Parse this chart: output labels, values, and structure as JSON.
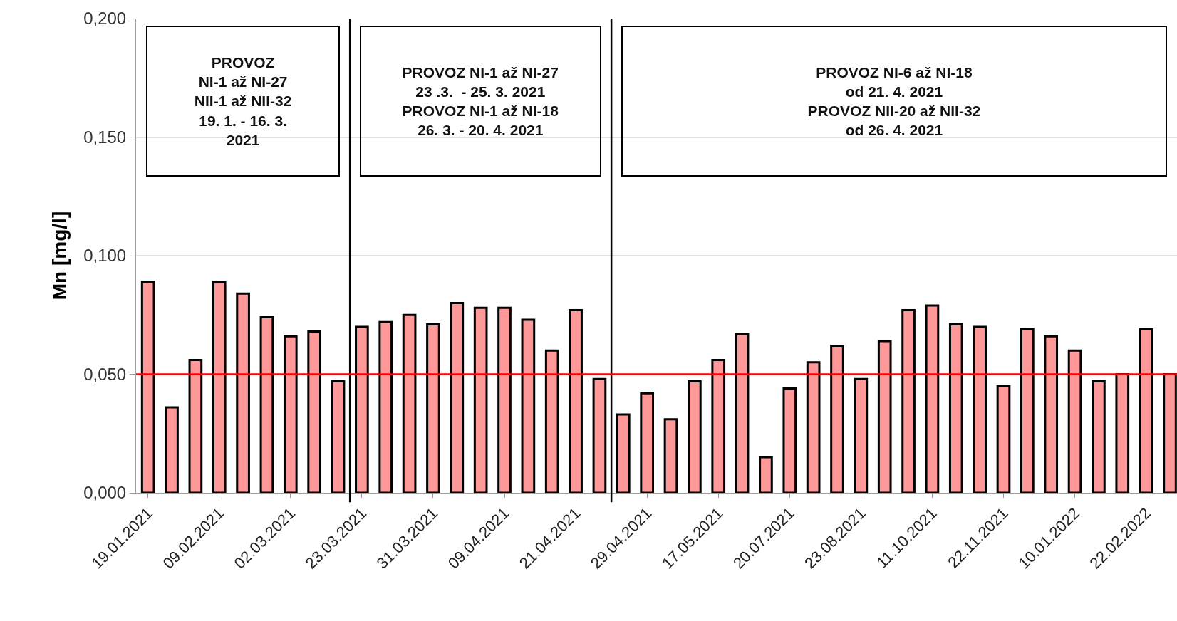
{
  "chart_data": {
    "type": "bar",
    "ylabel": "Mn [mg/l]",
    "categories": [
      "19.01.2021",
      null,
      null,
      "09.02.2021",
      null,
      null,
      "02.03.2021",
      null,
      null,
      "23.03.2021",
      null,
      null,
      "31.03.2021",
      null,
      null,
      "09.04.2021",
      null,
      null,
      "21.04.2021",
      null,
      null,
      "29.04.2021",
      null,
      null,
      "17.05.2021",
      null,
      null,
      "20.07.2021",
      null,
      null,
      "23.08.2021",
      null,
      null,
      "11.10.2021",
      null,
      null,
      "22.11.2021",
      null,
      null,
      "10.01.2022",
      null,
      null,
      "22.02.2022",
      null
    ],
    "values": [
      0.089,
      0.036,
      0.056,
      0.089,
      0.084,
      0.074,
      0.066,
      0.068,
      0.047,
      0.07,
      0.072,
      0.075,
      0.071,
      0.08,
      0.078,
      0.078,
      0.073,
      0.06,
      0.077,
      0.048,
      0.033,
      0.042,
      0.031,
      0.047,
      0.056,
      0.067,
      0.015,
      0.044,
      0.055,
      0.062,
      0.048,
      0.064,
      0.077,
      0.079,
      0.071,
      0.07,
      0.045,
      0.069,
      0.066,
      0.06,
      0.047,
      0.05,
      0.069,
      0.05
    ],
    "color": "#ff9999",
    "ylim": [
      0,
      0.2
    ],
    "yticks": [
      {
        "value": 0,
        "label": "0,000"
      },
      {
        "value": 0.05,
        "label": "0,050"
      },
      {
        "value": 0.1,
        "label": "0,100"
      },
      {
        "value": 0.15,
        "label": "0,150"
      },
      {
        "value": 0.2,
        "label": "0,200"
      }
    ],
    "grid": "y",
    "ref_lines": [
      {
        "axis": "y",
        "value": 0.05,
        "color": "#ff0000"
      }
    ],
    "annotations": [
      "PROVOZ\nNI-1 až NI-27\nNII-1 až NII-32\n19. 1. - 16. 3.\n2021",
      "PROVOZ NI-1 až NI-27\n23 .3.  - 25. 3. 2021\nPROVOZ NI-1 až NI-18\n26. 3. - 20. 4. 2021",
      "PROVOZ NI-6 až NI-18\nod 21. 4. 2021\nPROVOZ NII-20 až NII-32\nod 26. 4. 2021"
    ]
  }
}
